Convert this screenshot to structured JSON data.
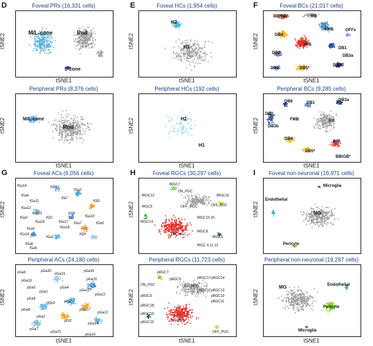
{
  "panels": {
    "D": {
      "letter": "D",
      "top_title": "Foveal PRs (16,331 cells)",
      "bottom_title": "Peripheral PRs (8,376 cells)",
      "top_labels": [
        "M/L-cone",
        "Rod",
        "S-cone"
      ],
      "bottom_labels": [
        "M/L-cone",
        "Rod"
      ]
    },
    "E": {
      "letter": "E",
      "top_title": "Foveal HCs (1,954 cells)",
      "bottom_title": "Peripheral HCs (192 cells)",
      "top_labels": [
        "H2",
        "H1"
      ],
      "bottom_labels": [
        "H2",
        "H1"
      ]
    },
    "F": {
      "letter": "F",
      "top_title": "Foveal BCs (21,017 cells)",
      "bottom_title": "Peripheral BCs (9,285 cells)",
      "top_labels": [
        "BB/GB*",
        "RB",
        "FMB",
        "OFFx",
        "DB4",
        "IMB",
        "DB1",
        "DB2",
        "DB3a",
        "DB5*",
        "DB6",
        "DB3b"
      ],
      "bottom_labels": [
        "DB6",
        "DB1",
        "DB3a",
        "DB2",
        "FMB",
        "RB",
        "DB3b",
        "DB4",
        "IMB",
        "DB5*",
        "BB/GB*"
      ]
    },
    "G": {
      "letter": "G",
      "top_title": "Foveal ACs (6,056 cells)",
      "bottom_title": "Peripheral ACs (24,180 cells)",
      "top_labels": [
        "fGa14",
        "fGl2",
        "fGa2",
        "fGa6",
        "fGa11",
        "fGl7",
        "fGl5",
        "fGa12",
        "fGa13",
        "fGl1",
        "fGa3",
        "fGa15",
        "fGa17",
        "fGl8",
        "fGa4",
        "fGa7",
        "fGa16",
        "fGa9",
        "fGa10",
        "fGa8",
        "fGa18",
        "fGl6",
        "fGa1",
        "fGa5"
      ],
      "bottom_labels": [
        "pGa6",
        "pGa20",
        "pGa19",
        "pGa26",
        "pGa10",
        "pGa16",
        "pGa5",
        "pGa1",
        "pGa4",
        "pGa11",
        "pGa13",
        "pGa9",
        "pGa3",
        "pGl1",
        "pGa17",
        "pGa12",
        "pGa8",
        "pGa2",
        "pGl2",
        "pGa14",
        "pGa7",
        "pGa15",
        "pGa10"
      ]
    },
    "H": {
      "letter": "H",
      "top_title": "Foveal RGCs (30,297 cells)",
      "bottom_title": "Peripheral RGCs (11,723 cells)",
      "top_labels": [
        "fRGC7",
        "ON_PGC",
        "fRGC12",
        "OFF_MGC",
        "fRGC10",
        "OFF_PGC",
        "fRGC5",
        "fRGC14",
        "fRGC15,16",
        "ON_MGC",
        "fRGC8",
        "fRGC6",
        "fRGC 9,11,13"
      ],
      "bottom_labels": [
        "pRGC7",
        "ON_PGC",
        "pRGC5",
        "pRGC17",
        "pRGC14",
        "OFF_MGC",
        "pRGC12",
        "pRGC13",
        "pRGC10",
        "pRGC9",
        "pRGC18",
        "pRGC11",
        "pRGC16",
        "pRGC15",
        "ON_MGC",
        "OFF_PGC"
      ]
    },
    "I": {
      "letter": "I",
      "top_title": "Foveal non-neuronal (16,971 cells)",
      "bottom_title": "Peripheral non-neuronal (19,297 cells)",
      "top_labels": [
        "Microglia",
        "Endothelial",
        "MG",
        "Pericyte"
      ],
      "bottom_labels": [
        "MG",
        "Endothelial",
        "Pericyte",
        "Microglia"
      ]
    }
  },
  "axes": {
    "x": "tSNE1",
    "y": "tSNE2"
  },
  "colors": {
    "title": "#1a3f8a",
    "grey": "#9e9e9e",
    "cone": "#5aaedc",
    "scone": "#2a4aa0",
    "red": "#e0302a",
    "orange": "#f2a623",
    "green": "#7ed321",
    "cyan": "#3ab0d0"
  }
}
